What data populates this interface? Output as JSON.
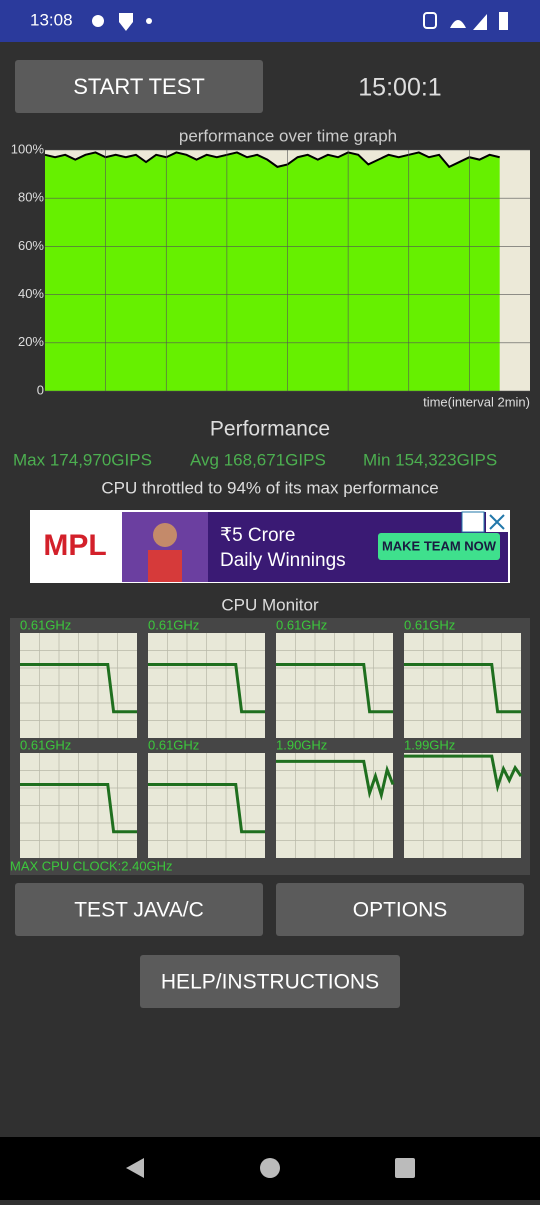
{
  "status_bar": {
    "time": "13:08"
  },
  "header": {
    "start_button": "START TEST",
    "timer": "15:00:1"
  },
  "chart_data": {
    "type": "area",
    "title": "performance over time graph",
    "x_label": "time(interval 2min)",
    "values": [
      98,
      97,
      98,
      96,
      98,
      99,
      97,
      98,
      97,
      98,
      95,
      98,
      97,
      99,
      98,
      96,
      98,
      97,
      98,
      99,
      97,
      98,
      96,
      93,
      94,
      97,
      98,
      96,
      98,
      97,
      99,
      98,
      94,
      96,
      98,
      97,
      98,
      99,
      97,
      98,
      93,
      95,
      97,
      96,
      98,
      97
    ],
    "xlim": [
      0,
      48
    ],
    "ylim": [
      0,
      100
    ],
    "yticks": [
      0,
      {
        "value": 20,
        "label": "20%"
      },
      {
        "value": 40,
        "label": "40%"
      },
      {
        "value": 60,
        "label": "60%"
      },
      {
        "value": 80,
        "label": "80%"
      },
      {
        "value": 100,
        "label": "100%"
      }
    ],
    "color": "#66f000",
    "line_color": "#000000",
    "grid": true
  },
  "performance": {
    "title": "Performance",
    "max": "Max 174,970GIPS",
    "avg": "Avg 168,671GIPS",
    "min": "Min 154,323GIPS",
    "throttle": "CPU throttled to 94% of its max performance"
  },
  "ad": {
    "brand": "MPL",
    "headline": "₹5 Crore",
    "subline": "Daily Winnings",
    "cta": "MAKE TEAM NOW"
  },
  "cpu_monitor": {
    "title": "CPU Monitor",
    "ylim": [
      0,
      100
    ],
    "line_color": "#1f6f1f",
    "cores": [
      {
        "label": "0.61GHz",
        "values": [
          70,
          70,
          70,
          70,
          70,
          70,
          70,
          70,
          70,
          70,
          70,
          70,
          70,
          70,
          70,
          70,
          25,
          25,
          25,
          25,
          25
        ]
      },
      {
        "label": "0.61GHz",
        "values": [
          70,
          70,
          70,
          70,
          70,
          70,
          70,
          70,
          70,
          70,
          70,
          70,
          70,
          70,
          70,
          70,
          25,
          25,
          25,
          25,
          25
        ]
      },
      {
        "label": "0.61GHz",
        "values": [
          70,
          70,
          70,
          70,
          70,
          70,
          70,
          70,
          70,
          70,
          70,
          70,
          70,
          70,
          70,
          70,
          25,
          25,
          25,
          25,
          25
        ]
      },
      {
        "label": "0.61GHz",
        "values": [
          70,
          70,
          70,
          70,
          70,
          70,
          70,
          70,
          70,
          70,
          70,
          70,
          70,
          70,
          70,
          70,
          25,
          25,
          25,
          25,
          25
        ]
      },
      {
        "label": "0.61GHz",
        "values": [
          70,
          70,
          70,
          70,
          70,
          70,
          70,
          70,
          70,
          70,
          70,
          70,
          70,
          70,
          70,
          70,
          25,
          25,
          25,
          25,
          25
        ]
      },
      {
        "label": "0.61GHz",
        "values": [
          70,
          70,
          70,
          70,
          70,
          70,
          70,
          70,
          70,
          70,
          70,
          70,
          70,
          70,
          70,
          70,
          25,
          25,
          25,
          25,
          25
        ]
      },
      {
        "label": "1.90GHz",
        "values": [
          92,
          92,
          92,
          92,
          92,
          92,
          92,
          92,
          92,
          92,
          92,
          92,
          92,
          92,
          92,
          92,
          62,
          78,
          60,
          84,
          70
        ]
      },
      {
        "label": "1.99GHz",
        "values": [
          97,
          97,
          97,
          97,
          97,
          97,
          97,
          97,
          97,
          97,
          97,
          97,
          97,
          97,
          97,
          97,
          68,
          85,
          74,
          86,
          78
        ]
      }
    ],
    "max_clock": "MAX CPU CLOCK:2.40GHz"
  },
  "buttons": {
    "test": "TEST JAVA/C",
    "options": "OPTIONS",
    "help": "HELP/INSTRUCTIONS"
  }
}
